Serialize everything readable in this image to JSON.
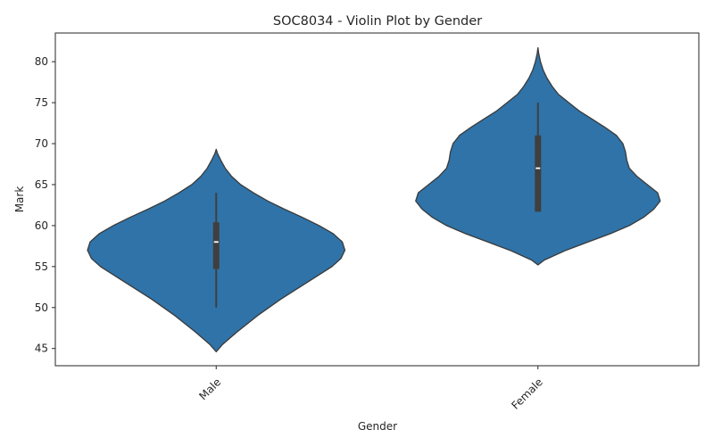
{
  "chart_data": {
    "type": "violin",
    "title": "SOC8034 - Violin Plot by Gender",
    "xlabel": "Gender",
    "ylabel": "Mark",
    "ylim": [
      42.9,
      83.5
    ],
    "yticks": [
      45,
      50,
      55,
      60,
      65,
      70,
      75,
      80
    ],
    "grid": false,
    "categories": [
      "Male",
      "Female"
    ],
    "violins": [
      {
        "category": "Male",
        "min": 44.6,
        "max": 69.3,
        "whisker_low": 50,
        "whisker_high": 64,
        "q1": 54.7,
        "median": 58,
        "q3": 60.4,
        "density_profile": [
          [
            44.6,
            0.0
          ],
          [
            45.5,
            0.05
          ],
          [
            47.0,
            0.16
          ],
          [
            49.0,
            0.32
          ],
          [
            51.0,
            0.5
          ],
          [
            53.0,
            0.7
          ],
          [
            55.0,
            0.9
          ],
          [
            56.0,
            0.97
          ],
          [
            57.0,
            1.0
          ],
          [
            58.0,
            0.98
          ],
          [
            59.0,
            0.91
          ],
          [
            60.0,
            0.8
          ],
          [
            61.0,
            0.67
          ],
          [
            62.0,
            0.53
          ],
          [
            63.0,
            0.4
          ],
          [
            64.0,
            0.29
          ],
          [
            65.0,
            0.19
          ],
          [
            66.0,
            0.12
          ],
          [
            67.0,
            0.07
          ],
          [
            68.0,
            0.035
          ],
          [
            68.8,
            0.01
          ],
          [
            69.3,
            0.0
          ]
        ]
      },
      {
        "category": "Female",
        "min": 55.2,
        "max": 81.7,
        "whisker_low": 61.7,
        "whisker_high": 75,
        "q1": 61.7,
        "median": 67,
        "q3": 71,
        "density_profile": [
          [
            55.2,
            0.0
          ],
          [
            55.8,
            0.05
          ],
          [
            57.0,
            0.22
          ],
          [
            58.0,
            0.39
          ],
          [
            59.0,
            0.56
          ],
          [
            60.0,
            0.71
          ],
          [
            61.0,
            0.82
          ],
          [
            62.0,
            0.9
          ],
          [
            63.0,
            0.95
          ],
          [
            64.0,
            0.93
          ],
          [
            65.0,
            0.85
          ],
          [
            66.0,
            0.77
          ],
          [
            67.0,
            0.71
          ],
          [
            68.0,
            0.69
          ],
          [
            69.0,
            0.68
          ],
          [
            70.0,
            0.66
          ],
          [
            71.0,
            0.61
          ],
          [
            72.0,
            0.52
          ],
          [
            73.0,
            0.42
          ],
          [
            74.0,
            0.32
          ],
          [
            75.0,
            0.24
          ],
          [
            76.0,
            0.16
          ],
          [
            77.0,
            0.11
          ],
          [
            78.0,
            0.07
          ],
          [
            79.0,
            0.04
          ],
          [
            80.0,
            0.02
          ],
          [
            81.0,
            0.006
          ],
          [
            81.7,
            0.0
          ]
        ]
      }
    ],
    "colors": {
      "fill": "#2f73a8",
      "outline": "#3a3a3a",
      "box": "#3f3f3f",
      "median_mark": "#ffffff",
      "axis": "#262626"
    }
  }
}
